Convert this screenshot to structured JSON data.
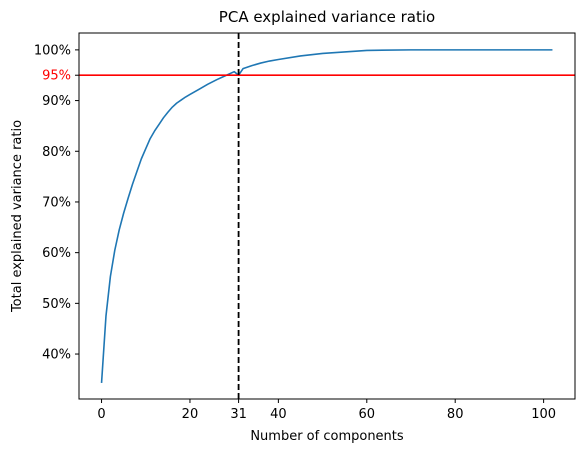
{
  "chart_data": {
    "type": "line",
    "title": "PCA explained variance ratio",
    "xlabel": "Number of components",
    "ylabel": "Total explained variance ratio",
    "xlim": [
      -5.1,
      107.1
    ],
    "ylim": [
      0.3113,
      1.0333
    ],
    "x_ticks": [
      0,
      20,
      40,
      60,
      80,
      100
    ],
    "y_ticks": [
      0.4,
      0.5,
      0.6,
      0.7,
      0.8,
      0.9,
      1.0
    ],
    "y_tick_labels": [
      "40%",
      "50%",
      "60%",
      "70%",
      "80%",
      "90%",
      "100%"
    ],
    "grid": false,
    "series": [
      {
        "color": "#1f77b4",
        "x": [
          0,
          1,
          2,
          3,
          4,
          5,
          6,
          7,
          8,
          9,
          10,
          11,
          12,
          13,
          14,
          15,
          16,
          17,
          18,
          19,
          20,
          22,
          24,
          26,
          28,
          30,
          31,
          32,
          34,
          36,
          38,
          40,
          45,
          50,
          55,
          60,
          70,
          80,
          90,
          102
        ],
        "y": [
          0.343,
          0.475,
          0.553,
          0.605,
          0.645,
          0.678,
          0.707,
          0.735,
          0.76,
          0.785,
          0.805,
          0.825,
          0.84,
          0.853,
          0.866,
          0.877,
          0.887,
          0.895,
          0.901,
          0.907,
          0.912,
          0.922,
          0.932,
          0.941,
          0.949,
          0.957,
          0.95,
          0.963,
          0.969,
          0.974,
          0.978,
          0.981,
          0.988,
          0.993,
          0.996,
          0.999,
          1.0,
          1.0,
          1.0,
          1.0
        ]
      }
    ],
    "threshold": {
      "y": 0.95,
      "label": "95%",
      "color": "#ff0000"
    },
    "cutoff": {
      "x": 31,
      "label": "31",
      "color": "#000000",
      "style": "dashed"
    }
  }
}
